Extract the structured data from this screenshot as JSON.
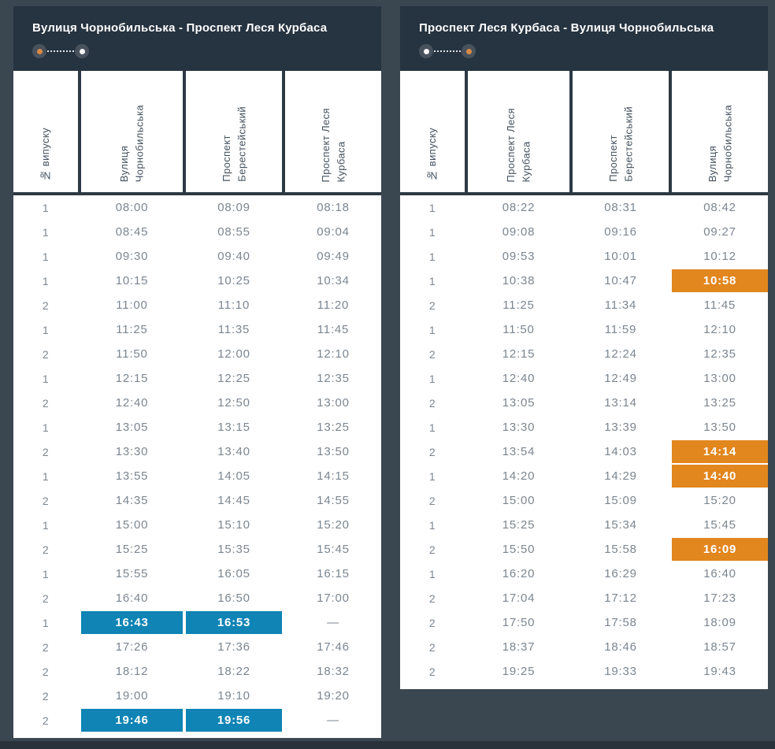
{
  "colors": {
    "page_background": "#3a4650",
    "panel_background": "#263340",
    "table_grid": "#2d3945",
    "cell_text": "#7c8690",
    "header_text": "#44515e",
    "highlight_blue": "#0f84b5",
    "highlight_orange": "#e2861e",
    "route_dot_orange": "#d98a45",
    "route_dot_white": "#f5f6f7",
    "footer_background": "#29313a"
  },
  "boards": [
    {
      "title": "Вулиця Чорнобильська - Проспект Леся Курбаса",
      "direction": {
        "start_dot": "orange",
        "end_dot": "white"
      },
      "columns": [
        "№ випуску",
        "Вулиця\nЧорнобильська",
        "Проспект\nБерестейський",
        "Проспект Леся\nКурбаса"
      ],
      "rows": [
        {
          "cells": [
            "1",
            "08:00",
            "08:09",
            "08:18"
          ]
        },
        {
          "cells": [
            "1",
            "08:45",
            "08:55",
            "09:04"
          ]
        },
        {
          "cells": [
            "1",
            "09:30",
            "09:40",
            "09:49"
          ]
        },
        {
          "cells": [
            "1",
            "10:15",
            "10:25",
            "10:34"
          ]
        },
        {
          "cells": [
            "2",
            "11:00",
            "11:10",
            "11:20"
          ]
        },
        {
          "cells": [
            "1",
            "11:25",
            "11:35",
            "11:45"
          ]
        },
        {
          "cells": [
            "2",
            "11:50",
            "12:00",
            "12:10"
          ]
        },
        {
          "cells": [
            "1",
            "12:15",
            "12:25",
            "12:35"
          ]
        },
        {
          "cells": [
            "2",
            "12:40",
            "12:50",
            "13:00"
          ]
        },
        {
          "cells": [
            "1",
            "13:05",
            "13:15",
            "13:25"
          ]
        },
        {
          "cells": [
            "2",
            "13:30",
            "13:40",
            "13:50"
          ]
        },
        {
          "cells": [
            "1",
            "13:55",
            "14:05",
            "14:15"
          ]
        },
        {
          "cells": [
            "2",
            "14:35",
            "14:45",
            "14:55"
          ]
        },
        {
          "cells": [
            "1",
            "15:00",
            "15:10",
            "15:20"
          ]
        },
        {
          "cells": [
            "2",
            "15:25",
            "15:35",
            "15:45"
          ]
        },
        {
          "cells": [
            "1",
            "15:55",
            "16:05",
            "16:15"
          ]
        },
        {
          "cells": [
            "2",
            "16:40",
            "16:50",
            "17:00"
          ]
        },
        {
          "cells": [
            "1",
            "16:43",
            "16:53",
            "—"
          ],
          "highlights": {
            "1": "blue",
            "2": "blue"
          }
        },
        {
          "cells": [
            "2",
            "17:26",
            "17:36",
            "17:46"
          ]
        },
        {
          "cells": [
            "2",
            "18:12",
            "18:22",
            "18:32"
          ]
        },
        {
          "cells": [
            "2",
            "19:00",
            "19:10",
            "19:20"
          ]
        },
        {
          "cells": [
            "2",
            "19:46",
            "19:56",
            "—"
          ],
          "highlights": {
            "1": "blue",
            "2": "blue"
          }
        }
      ]
    },
    {
      "title": "Проспект Леся Курбаса - Вулиця Чорнобильська",
      "direction": {
        "start_dot": "white",
        "end_dot": "orange"
      },
      "columns": [
        "№ випуску",
        "Проспект Леся\nКурбаса",
        "Проспект\nБерестейський",
        "Вулиця\nЧорнобильська"
      ],
      "rows": [
        {
          "cells": [
            "1",
            "08:22",
            "08:31",
            "08:42"
          ]
        },
        {
          "cells": [
            "1",
            "09:08",
            "09:16",
            "09:27"
          ]
        },
        {
          "cells": [
            "1",
            "09:53",
            "10:01",
            "10:12"
          ]
        },
        {
          "cells": [
            "1",
            "10:38",
            "10:47",
            "10:58"
          ],
          "highlights": {
            "3": "orange"
          }
        },
        {
          "cells": [
            "2",
            "11:25",
            "11:34",
            "11:45"
          ]
        },
        {
          "cells": [
            "1",
            "11:50",
            "11:59",
            "12:10"
          ]
        },
        {
          "cells": [
            "2",
            "12:15",
            "12:24",
            "12:35"
          ]
        },
        {
          "cells": [
            "1",
            "12:40",
            "12:49",
            "13:00"
          ]
        },
        {
          "cells": [
            "2",
            "13:05",
            "13:14",
            "13:25"
          ]
        },
        {
          "cells": [
            "1",
            "13:30",
            "13:39",
            "13:50"
          ]
        },
        {
          "cells": [
            "2",
            "13:54",
            "14:03",
            "14:14"
          ],
          "highlights": {
            "3": "orange"
          }
        },
        {
          "cells": [
            "1",
            "14:20",
            "14:29",
            "14:40"
          ],
          "highlights": {
            "3": "orange"
          }
        },
        {
          "cells": [
            "2",
            "15:00",
            "15:09",
            "15:20"
          ]
        },
        {
          "cells": [
            "1",
            "15:25",
            "15:34",
            "15:45"
          ]
        },
        {
          "cells": [
            "2",
            "15:50",
            "15:58",
            "16:09"
          ],
          "highlights": {
            "3": "orange"
          }
        },
        {
          "cells": [
            "1",
            "16:20",
            "16:29",
            "16:40"
          ]
        },
        {
          "cells": [
            "2",
            "17:04",
            "17:12",
            "17:23"
          ]
        },
        {
          "cells": [
            "2",
            "17:50",
            "17:58",
            "18:09"
          ]
        },
        {
          "cells": [
            "2",
            "18:37",
            "18:46",
            "18:57"
          ]
        },
        {
          "cells": [
            "2",
            "19:25",
            "19:33",
            "19:43"
          ]
        }
      ]
    }
  ]
}
